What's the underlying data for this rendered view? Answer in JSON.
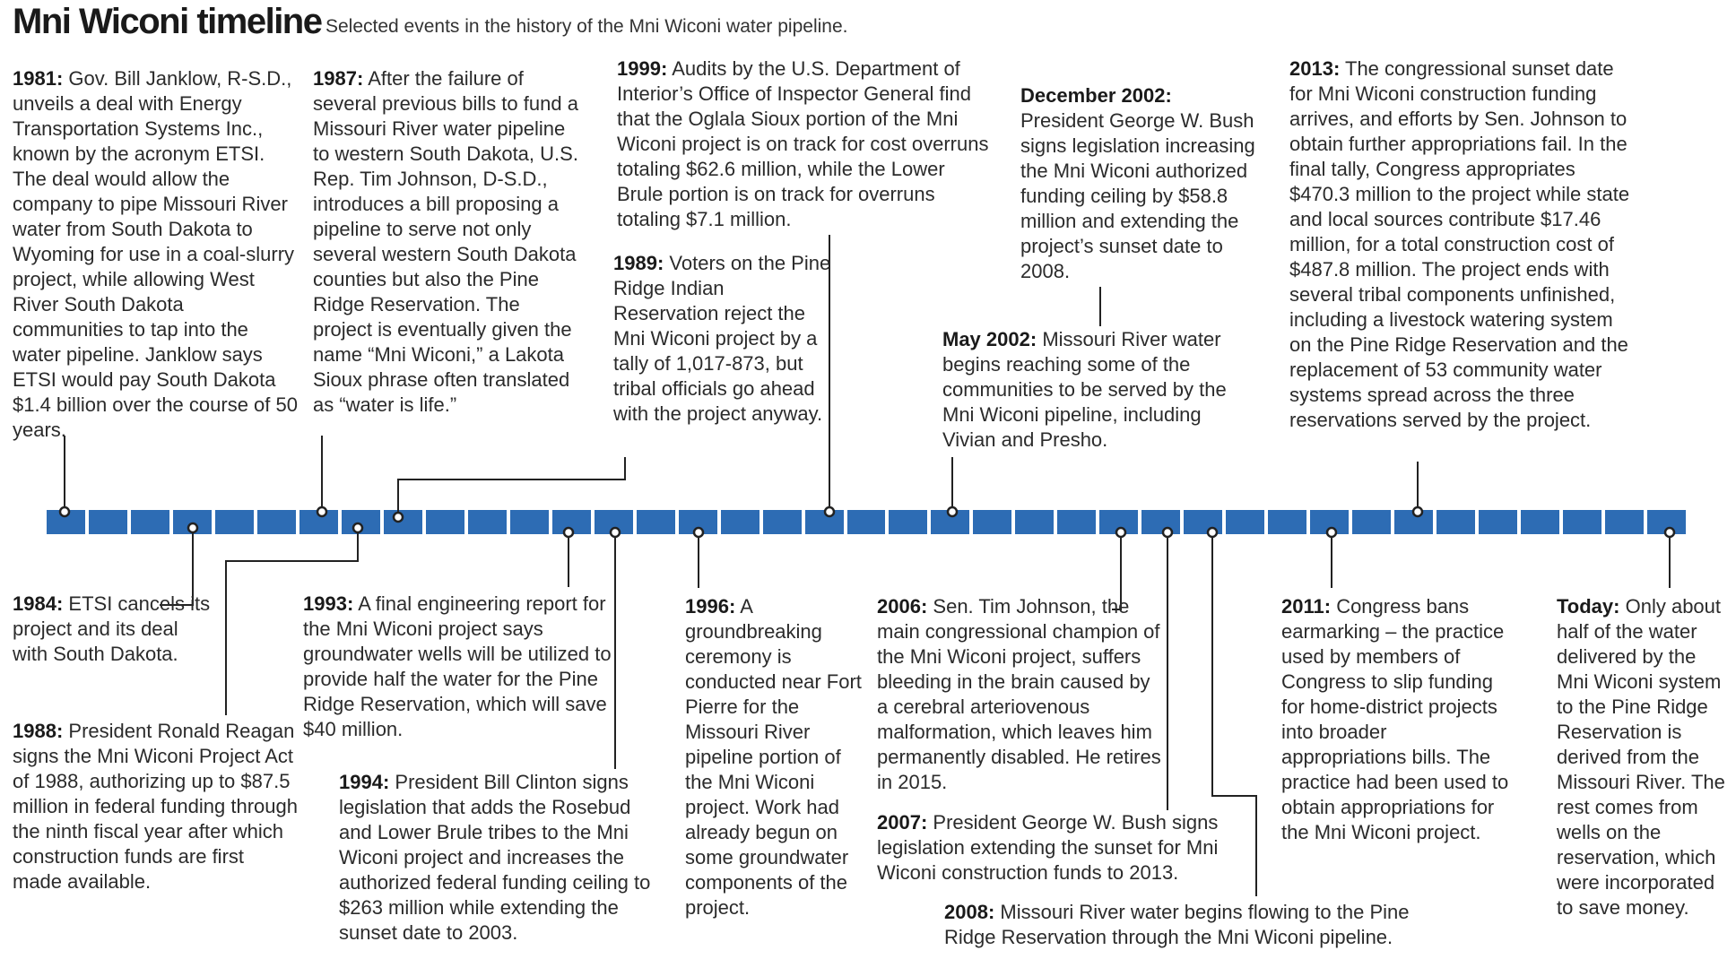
{
  "header": {
    "title": "Mni Wiconi timeline",
    "subtitle": "Selected events in the history of the Mni Wiconi water pipeline."
  },
  "colors": {
    "bar": "#2d6cb4",
    "connector": "#222222"
  },
  "events": {
    "e1981": {
      "year": "1981:",
      "text": "Gov. Bill Janklow, R-S.D., unveils a deal with Energy Transportation Systems Inc., known by the acronym ETSI. The deal would allow the company to pipe Missouri River water from South Dakota to Wyoming for use in a coal-slurry project, while allowing West River South Dakota communities to tap into the water pipeline. Janklow says ETSI would pay South Dakota $1.4 billion over the course of 50 years."
    },
    "e1984": {
      "year": "1984:",
      "text": "ETSI cancels its project and its deal with South Dakota."
    },
    "e1987": {
      "year": "1987:",
      "text": "After the failure of several previous bills to fund a Missouri River water pipeline to western South Dakota, U.S. Rep. Tim Johnson, D-S.D., introduces a bill proposing a pipeline to serve not only several western South Dakota counties but also the Pine Ridge Reservation. The project is eventually given the name “Mni Wiconi,” a Lakota Sioux phrase often translated as “water is life.”"
    },
    "e1988": {
      "year": "1988:",
      "text": "President Ronald Reagan signs the Mni Wiconi Project Act of 1988, authorizing up to $87.5 million in federal funding through the ninth fiscal year after which construction funds are first made available."
    },
    "e1989": {
      "year": "1989:",
      "text": "Voters on the Pine Ridge Indian Reservation reject the Mni Wiconi project by a tally of 1,017-873, but tribal officials go ahead with the project anyway."
    },
    "e1993": {
      "year": "1993:",
      "text": "A final engineering report for the Mni Wiconi project says groundwater wells will be utilized to provide half the water for the Pine Ridge Reservation, which will save $40 million."
    },
    "e1994": {
      "year": "1994:",
      "text": "President Bill Clinton signs legislation that adds the Rosebud and Lower Brule tribes to the Mni Wiconi project and increases the authorized federal funding ceiling to $263 million while extending the sunset date to 2003."
    },
    "e1996": {
      "year": "1996:",
      "text": "A groundbreaking ceremony is conducted near Fort Pierre for the Missouri River pipeline portion of the Mni Wiconi project. Work had already begun on some groundwater components of the project."
    },
    "e1999": {
      "year": "1999:",
      "text": "Audits by the U.S. Department of Interior’s Office of Inspector General find that the Oglala Sioux portion of the Mni Wiconi project is on track for cost overruns totaling $62.6 million, while the Lower Brule portion is on track for overruns totaling $7.1 million."
    },
    "e2002may": {
      "year": "May 2002:",
      "text": "Missouri River water begins reaching some of the communities to be served by the Mni Wiconi pipeline, including Vivian and Presho."
    },
    "e2002dec": {
      "year": "December 2002:",
      "text": "President George W. Bush signs legislation increasing the Mni Wiconi authorized funding ceiling by $58.8 million and extending the project’s sunset date to 2008."
    },
    "e2006": {
      "year": "2006:",
      "text": "Sen. Tim Johnson, the main congressional champion of the Mni Wiconi project, suffers bleeding in the brain caused by a cerebral arteriovenous malformation, which leaves him permanently disabled. He retires in 2015."
    },
    "e2007": {
      "year": "2007:",
      "text": "President George W. Bush signs legislation extending the sunset for Mni Wiconi construction funds to 2013."
    },
    "e2008": {
      "year": "2008:",
      "text": "Missouri River water begins flowing to the Pine Ridge Reservation through the Mni Wiconi pipeline."
    },
    "e2011": {
      "year": "2011:",
      "text": "Congress bans earmarking – the practice used by members of Congress to slip funding for home-district projects into broader appropriations bills. The practice had been used to obtain appropriations for the Mni Wiconi project."
    },
    "e2013": {
      "year": "2013:",
      "text": "The congressional sunset date for Mni Wiconi construction funding arrives, and efforts by Sen. Johnson to obtain further appropriations fail. In the final tally, Congress appropriates $470.3 million to the project while state and local sources contribute $17.46 million, for a total construction cost of $487.8 million. The project ends with several tribal components unfinished, including a livestock watering system on the Pine Ridge Reservation and the replacement of 53 community water systems spread across the three reservations served by the project."
    },
    "today": {
      "year": "Today:",
      "text": "Only about half of the water delivered by the Mni Wiconi system to the Pine Ridge Reservation is derived from the Missouri River. The rest comes from wells on the reservation, which were incorporated to save money."
    }
  }
}
